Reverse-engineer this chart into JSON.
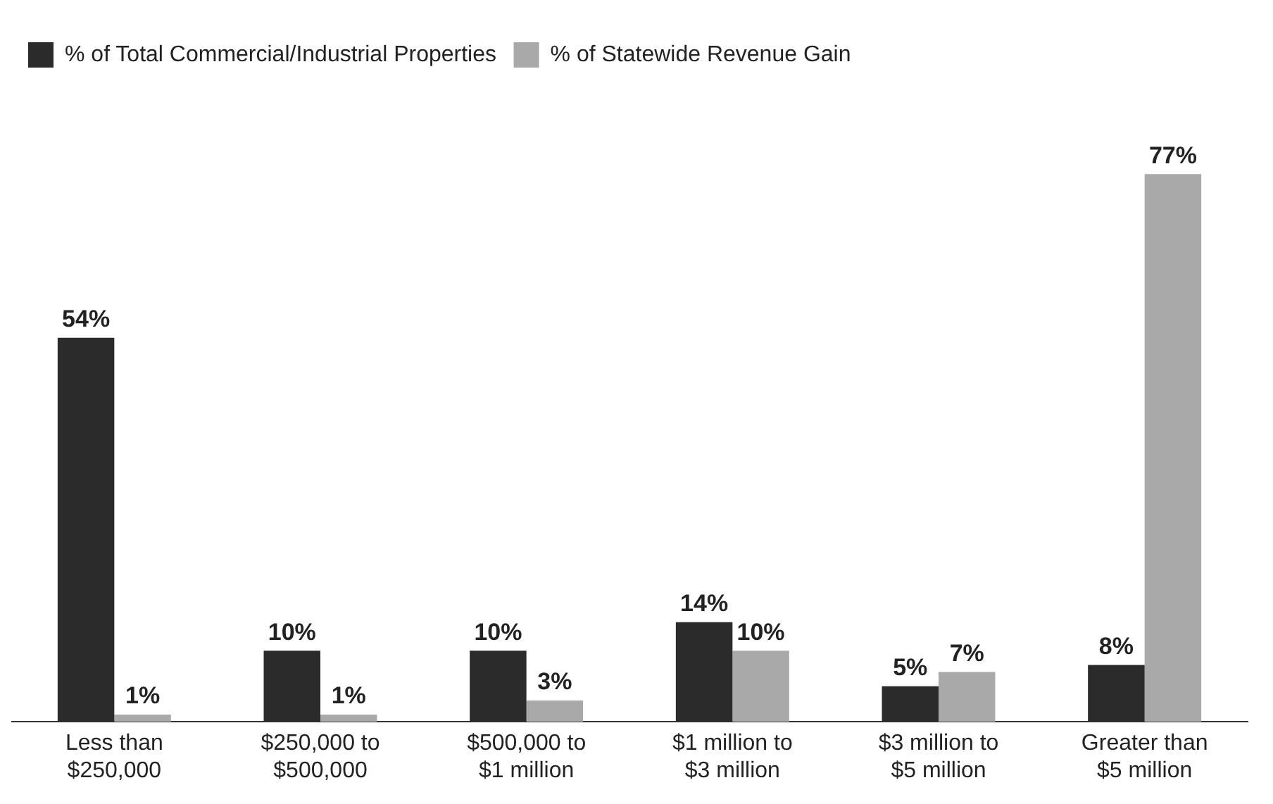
{
  "chart_data": {
    "type": "bar",
    "categories": [
      "Less than $250,000",
      "$250,000 to $500,000",
      "$500,000 to $1 million",
      "$1 million to $3 million",
      "$3 million to $5 million",
      "Greater than $5 million"
    ],
    "series": [
      {
        "name": "% of Total Commercial/Industrial Properties",
        "color": "#2b2b2b",
        "values": [
          54,
          10,
          10,
          14,
          5,
          8
        ],
        "value_labels": [
          "54%",
          "10%",
          "10%",
          "14%",
          "5%",
          "8%"
        ]
      },
      {
        "name": "% of Statewide Revenue Gain",
        "color": "#a9a9a9",
        "values": [
          1,
          1,
          3,
          10,
          7,
          77
        ],
        "value_labels": [
          "1%",
          "1%",
          "3%",
          "10%",
          "7%",
          "77%"
        ]
      }
    ],
    "legend": "top left",
    "grid": false
  }
}
